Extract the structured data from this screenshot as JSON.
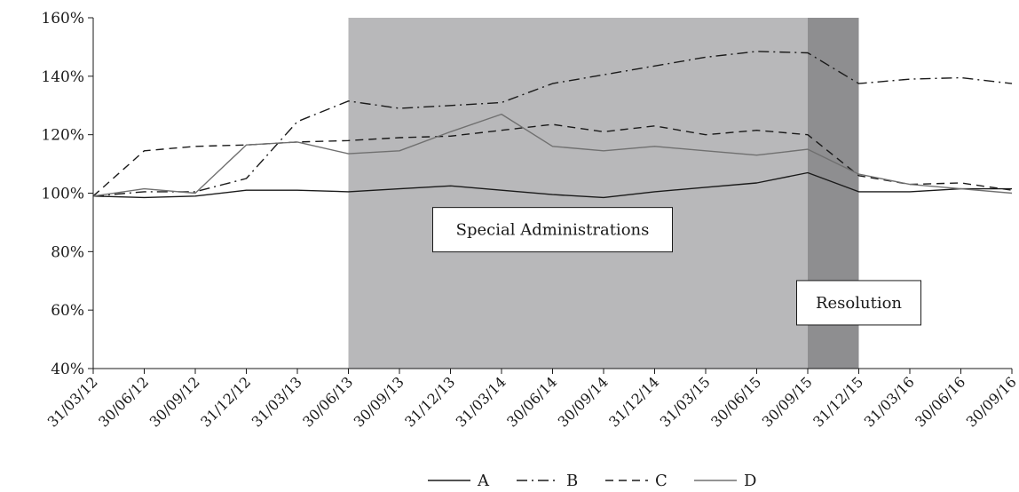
{
  "chart_data": {
    "type": "line",
    "ylim": [
      0.4,
      1.6
    ],
    "yticks": [
      0.4,
      0.6,
      0.8,
      1.0,
      1.2,
      1.4,
      1.6
    ],
    "ytick_labels": [
      "40%",
      "60%",
      "80%",
      "100%",
      "120%",
      "140%",
      "160%"
    ],
    "x": [
      "31/03/12",
      "30/06/12",
      "30/09/12",
      "31/12/12",
      "31/03/13",
      "30/06/13",
      "30/09/13",
      "31/12/13",
      "31/03/14",
      "30/06/14",
      "30/09/14",
      "31/12/14",
      "31/03/15",
      "30/06/15",
      "30/09/15",
      "31/12/15",
      "31/03/16",
      "30/06/16",
      "30/09/16"
    ],
    "grid": false,
    "legend_position": "bottom-center",
    "series": [
      {
        "name": "A",
        "style": "solid",
        "color": "#1a1a1a",
        "values": [
          0.99,
          0.985,
          0.99,
          1.01,
          1.01,
          1.005,
          1.015,
          1.025,
          1.01,
          0.995,
          0.985,
          1.005,
          1.02,
          1.035,
          1.07,
          1.005,
          1.005,
          1.015,
          1.015
        ]
      },
      {
        "name": "B",
        "style": "dash-dot",
        "color": "#1a1a1a",
        "values": [
          0.99,
          1.005,
          1.005,
          1.05,
          1.245,
          1.315,
          1.29,
          1.3,
          1.31,
          1.375,
          1.405,
          1.435,
          1.465,
          1.485,
          1.48,
          1.375,
          1.39,
          1.395,
          1.375
        ]
      },
      {
        "name": "C",
        "style": "dashed",
        "color": "#1a1a1a",
        "values": [
          0.99,
          1.145,
          1.16,
          1.165,
          1.175,
          1.18,
          1.19,
          1.195,
          1.215,
          1.235,
          1.21,
          1.23,
          1.2,
          1.215,
          1.2,
          1.06,
          1.03,
          1.035,
          1.01
        ]
      },
      {
        "name": "D",
        "style": "solid",
        "color": "#707070",
        "values": [
          0.99,
          1.015,
          1.0,
          1.165,
          1.175,
          1.135,
          1.145,
          1.21,
          1.27,
          1.16,
          1.145,
          1.16,
          1.145,
          1.13,
          1.15,
          1.065,
          1.03,
          1.015,
          1.0
        ]
      }
    ],
    "shaded_periods": [
      {
        "label": "Special Administrations",
        "start": "30/06/13",
        "end": "30/09/15",
        "color": "#b8b8ba"
      },
      {
        "label": "Resolution",
        "start": "30/09/15",
        "end": "31/12/15",
        "color": "#8e8e90"
      }
    ],
    "annotations": [
      {
        "text": "Special Administrations",
        "x": "30/06/14",
        "y": 0.875
      },
      {
        "text": "Resolution",
        "x": "31/12/15",
        "y": 0.625
      }
    ]
  }
}
